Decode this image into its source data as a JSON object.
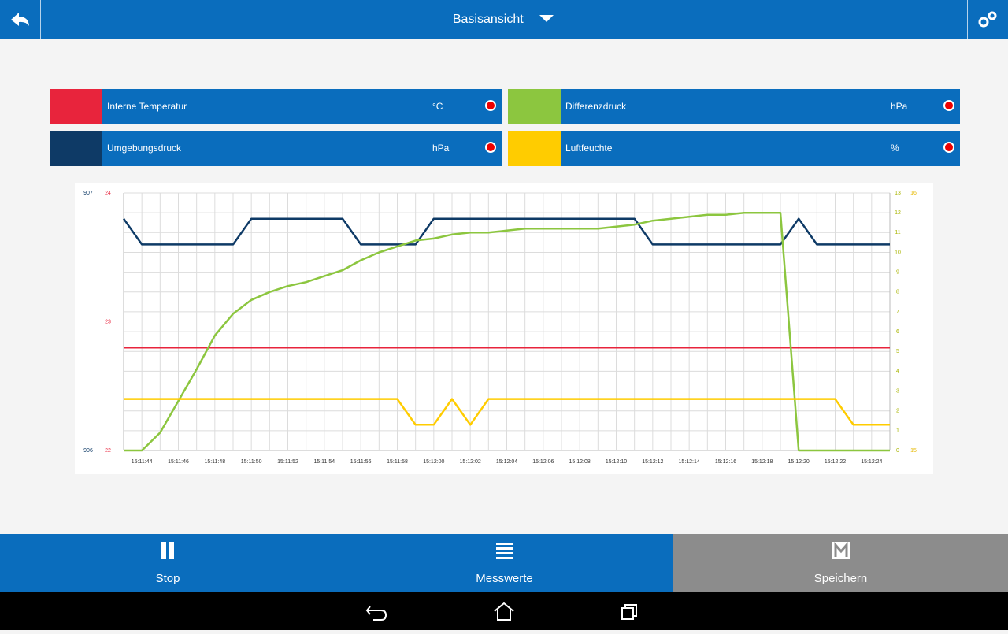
{
  "header": {
    "title": "Basisansicht"
  },
  "legend": [
    {
      "name": "Interne Temperatur",
      "unit": "°C",
      "color": "#e8243c"
    },
    {
      "name": "Differenzdruck",
      "unit": "hPa",
      "color": "#8cc63f"
    },
    {
      "name": "Umgebungsdruck",
      "unit": "hPa",
      "color": "#0e3a66"
    },
    {
      "name": "Luftfeuchte",
      "unit": "%",
      "color": "#ffcc00"
    }
  ],
  "chart_data": {
    "type": "line",
    "categories": [
      null,
      "15:11:44",
      null,
      "15:11:46",
      null,
      "15:11:48",
      null,
      "15:11:50",
      null,
      "15:11:52",
      null,
      "15:11:54",
      null,
      "15:11:56",
      null,
      "15:11:58",
      null,
      "15:12:00",
      null,
      "15:12:02",
      null,
      "15:12:04",
      null,
      "15:12:06",
      null,
      "15:12:08",
      null,
      "15:12:10",
      null,
      "15:12:12",
      null,
      "15:12:14",
      null,
      "15:12:16",
      null,
      "15:12:18",
      null,
      "15:12:20",
      null,
      "15:12:22",
      null,
      "15:12:24",
      null
    ],
    "y_axes": [
      {
        "side": "left",
        "color": "#0e3a66",
        "ylim": [
          906,
          907
        ],
        "yticks": [
          906,
          907
        ]
      },
      {
        "side": "left",
        "color": "#e8243c",
        "ylim": [
          22,
          24
        ],
        "yticks": [
          22,
          23,
          24
        ]
      },
      {
        "side": "right",
        "color": "#a8b400",
        "ylim": [
          0,
          13
        ],
        "yticks": [
          0,
          1,
          2,
          3,
          4,
          5,
          6,
          7,
          8,
          9,
          10,
          11,
          12,
          13
        ]
      },
      {
        "side": "right",
        "color": "#e6b800",
        "ylim": [
          15,
          16
        ],
        "yticks": [
          15,
          16
        ]
      }
    ],
    "grid": true,
    "series": [
      {
        "name": "Umgebungsdruck",
        "color": "#0e3a66",
        "axis": 0,
        "values": [
          906.9,
          906.8,
          906.8,
          906.8,
          906.8,
          906.8,
          906.8,
          906.9,
          906.9,
          906.9,
          906.9,
          906.9,
          906.9,
          906.8,
          906.8,
          906.8,
          906.8,
          906.9,
          906.9,
          906.9,
          906.9,
          906.9,
          906.9,
          906.9,
          906.9,
          906.9,
          906.9,
          906.9,
          906.9,
          906.8,
          906.8,
          906.8,
          906.8,
          906.8,
          906.8,
          906.8,
          906.8,
          906.9,
          906.8,
          906.8,
          906.8,
          906.8,
          906.8
        ]
      },
      {
        "name": "Interne Temperatur",
        "color": "#e8243c",
        "axis": 1,
        "values": [
          22.8,
          22.8,
          22.8,
          22.8,
          22.8,
          22.8,
          22.8,
          22.8,
          22.8,
          22.8,
          22.8,
          22.8,
          22.8,
          22.8,
          22.8,
          22.8,
          22.8,
          22.8,
          22.8,
          22.8,
          22.8,
          22.8,
          22.8,
          22.8,
          22.8,
          22.8,
          22.8,
          22.8,
          22.8,
          22.8,
          22.8,
          22.8,
          22.8,
          22.8,
          22.8,
          22.8,
          22.8,
          22.8,
          22.8,
          22.8,
          22.8,
          22.8,
          22.8
        ]
      },
      {
        "name": "Differenzdruck",
        "color": "#8cc63f",
        "axis": 2,
        "values": [
          0,
          0,
          0.9,
          2.5,
          4.1,
          5.8,
          6.9,
          7.6,
          8.0,
          8.3,
          8.5,
          8.8,
          9.1,
          9.6,
          10.0,
          10.3,
          10.6,
          10.7,
          10.9,
          11.0,
          11.0,
          11.1,
          11.2,
          11.2,
          11.2,
          11.2,
          11.2,
          11.3,
          11.4,
          11.6,
          11.7,
          11.8,
          11.9,
          11.9,
          12.0,
          12.0,
          12.0,
          0,
          0,
          0,
          0,
          0,
          0
        ]
      },
      {
        "name": "Luftfeuchte",
        "color": "#ffcc00",
        "axis": 3,
        "values": [
          15.2,
          15.2,
          15.2,
          15.2,
          15.2,
          15.2,
          15.2,
          15.2,
          15.2,
          15.2,
          15.2,
          15.2,
          15.2,
          15.2,
          15.2,
          15.2,
          15.1,
          15.1,
          15.2,
          15.1,
          15.2,
          15.2,
          15.2,
          15.2,
          15.2,
          15.2,
          15.2,
          15.2,
          15.2,
          15.2,
          15.2,
          15.2,
          15.2,
          15.2,
          15.2,
          15.2,
          15.2,
          15.2,
          15.2,
          15.2,
          15.1,
          15.1,
          15.1
        ]
      }
    ]
  },
  "toolbar": [
    {
      "label": "Stop"
    },
    {
      "label": "Messwerte"
    },
    {
      "label": "Speichern"
    }
  ]
}
